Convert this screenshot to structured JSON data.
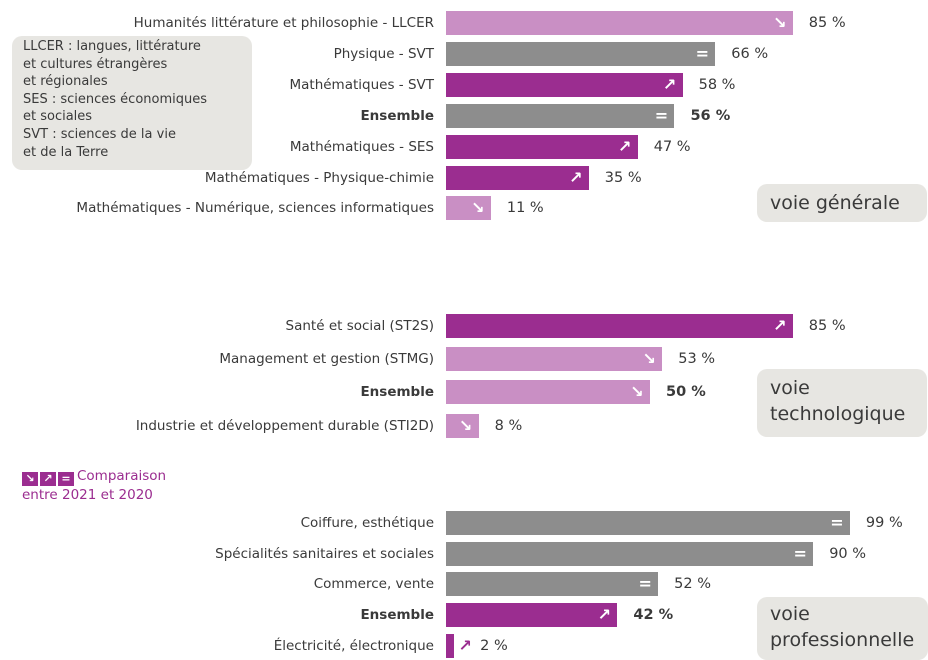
{
  "colors": {
    "up": "#9b2d90",
    "down": "#c98fc4",
    "equal": "#8d8d8d",
    "panel": "#e7e6e2",
    "accent_text": "#9b2d90"
  },
  "legend": {
    "lines": [
      "LLCER : langues, littérature",
      "et cultures étrangères",
      "et régionales",
      "SES : sciences économiques",
      "et sociales",
      "SVT : sciences de la vie",
      "et de la Terre"
    ]
  },
  "comparison_legend": {
    "line1": "Comparaison",
    "line2": "entre 2021 et 2020",
    "icons": [
      "down-arrow-icon",
      "up-arrow-icon",
      "equal-icon"
    ]
  },
  "chart_data": [
    {
      "type": "bar",
      "orientation": "horizontal",
      "group_label": "voie générale",
      "value_unit": "%",
      "xlim": [
        0,
        100
      ],
      "categories": [
        "Humanités littérature et philosophie - LLCER",
        "Physique - SVT",
        "Mathématiques - SVT",
        "Ensemble",
        "Mathématiques - SES",
        "Mathématiques - Physique-chimie",
        "Mathématiques - Numérique, sciences informatiques"
      ],
      "values": [
        85,
        66,
        58,
        56,
        47,
        35,
        11
      ],
      "value_labels": [
        "85 %",
        "66 %",
        "58 %",
        "56 %",
        "47 %",
        "35 %",
        "11 %"
      ],
      "trend": [
        "down",
        "equal",
        "up",
        "equal",
        "up",
        "up",
        "down"
      ],
      "bold": [
        false,
        false,
        false,
        true,
        false,
        false,
        false
      ]
    },
    {
      "type": "bar",
      "orientation": "horizontal",
      "group_label": "voie technologique",
      "value_unit": "%",
      "xlim": [
        0,
        100
      ],
      "categories": [
        "Santé et social (ST2S)",
        "Management et gestion (STMG)",
        "Ensemble",
        "Industrie et développement durable (STI2D)"
      ],
      "values": [
        85,
        53,
        50,
        8
      ],
      "value_labels": [
        "85 %",
        "53 %",
        "50 %",
        "8 %"
      ],
      "trend": [
        "up",
        "down",
        "down",
        "down"
      ],
      "bold": [
        false,
        false,
        true,
        false
      ]
    },
    {
      "type": "bar",
      "orientation": "horizontal",
      "group_label": "voie professionnelle",
      "value_unit": "%",
      "xlim": [
        0,
        100
      ],
      "categories": [
        "Coiffure, esthétique",
        "Spécialités sanitaires et sociales",
        "Commerce, vente",
        "Ensemble",
        "Électricité, électronique"
      ],
      "values": [
        99,
        90,
        52,
        42,
        2
      ],
      "value_labels": [
        "99 %",
        "90 %",
        "52 %",
        "42 %",
        "2 %"
      ],
      "trend": [
        "equal",
        "equal",
        "equal",
        "up",
        "up"
      ],
      "bold": [
        false,
        false,
        false,
        true,
        false
      ]
    }
  ],
  "voie_labels": [
    [
      "voie générale"
    ],
    [
      "voie",
      "technologique"
    ],
    [
      "voie",
      "professionnelle"
    ]
  ]
}
